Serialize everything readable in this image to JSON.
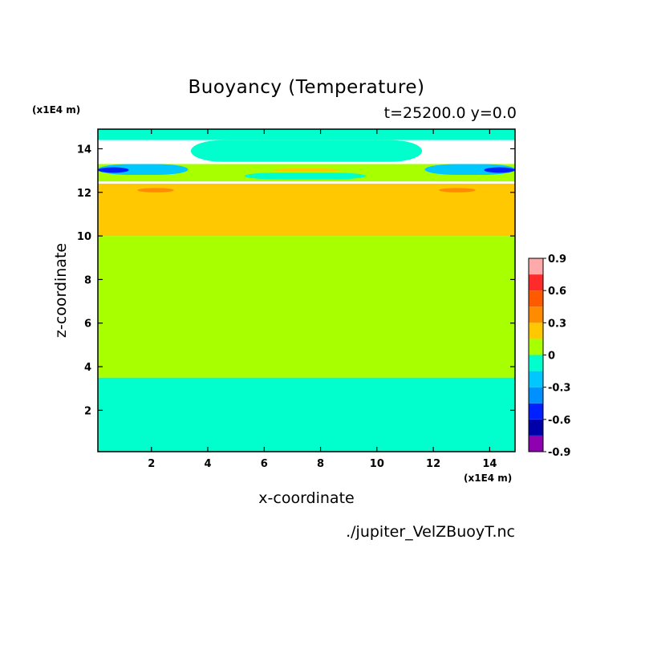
{
  "chart_data": {
    "type": "heatmap",
    "subtype": "filled-contour",
    "title": "Buoyancy (Temperature)",
    "subtitle": "t=25200.0 y=0.0",
    "xlabel": "x-coordinate",
    "ylabel": "z-coordinate",
    "x_unit_label": "(x1E4 m)",
    "y_unit_label": "(x1E4 m)",
    "xlim": [
      0.1,
      14.9
    ],
    "ylim": [
      0.1,
      14.9
    ],
    "x_ticks": [
      "2",
      "4",
      "6",
      "8",
      "10",
      "12",
      "14"
    ],
    "y_ticks": [
      "2",
      "4",
      "6",
      "8",
      "10",
      "12",
      "14"
    ],
    "colorbar": {
      "levels": [
        -0.9,
        -0.75,
        -0.6,
        -0.45,
        -0.3,
        -0.15,
        0,
        0.15,
        0.3,
        0.45,
        0.6,
        0.75,
        0.9
      ],
      "tick_labels": [
        "0.9",
        "0.6",
        "0.3",
        "0",
        "-0.3",
        "-0.6",
        "-0.9"
      ],
      "colors": [
        "#8e00b0",
        "#0000aa",
        "#0020ff",
        "#0090ff",
        "#00c8ff",
        "#00ffcc",
        "#a8ff00",
        "#ffc800",
        "#ff8c00",
        "#ff5a00",
        "#ff2a2a",
        "#ffaaaa"
      ]
    },
    "regions": [
      {
        "z_range": [
          0.1,
          3.5
        ],
        "x_range": [
          0.1,
          14.9
        ],
        "band": "-0.15 to 0",
        "color": "#00ffcc"
      },
      {
        "z_range": [
          3.5,
          10.0
        ],
        "x_range": [
          0.1,
          14.9
        ],
        "band": "0 to 0.15",
        "color": "#a8ff00"
      },
      {
        "z_range": [
          10.0,
          12.4
        ],
        "x_range": [
          0.1,
          14.9
        ],
        "band": "0.15 to 0.3",
        "color": "#ffc800"
      },
      {
        "z_range": [
          12.0,
          12.2
        ],
        "x_range": [
          1.5,
          2.8
        ],
        "band": "0.3 to 0.45",
        "color": "#ff8c00"
      },
      {
        "z_range": [
          12.0,
          12.2
        ],
        "x_range": [
          12.2,
          13.5
        ],
        "band": "0.3 to 0.45",
        "color": "#ff8c00"
      },
      {
        "z_range": [
          12.5,
          13.3
        ],
        "x_range": [
          0.1,
          14.9
        ],
        "band": "0 to 0.15",
        "color": "#a8ff00"
      },
      {
        "z_range": [
          12.8,
          13.3
        ],
        "x_range": [
          0.1,
          3.3
        ],
        "band": "-0.3 to -0.15",
        "color": "#00c8ff"
      },
      {
        "z_range": [
          12.8,
          13.3
        ],
        "x_range": [
          11.7,
          14.9
        ],
        "band": "-0.3 to -0.15",
        "color": "#00c8ff"
      },
      {
        "z_range": [
          12.9,
          13.15
        ],
        "x_range": [
          0.1,
          1.2
        ],
        "band": "-0.6 to -0.3",
        "color": "#0020ff"
      },
      {
        "z_range": [
          12.9,
          13.15
        ],
        "x_range": [
          13.8,
          14.9
        ],
        "band": "-0.6 to -0.3",
        "color": "#0020ff"
      },
      {
        "z_range": [
          12.6,
          12.9
        ],
        "x_range": [
          5.3,
          9.6
        ],
        "band": "-0.15 to 0",
        "color": "#00ffcc"
      },
      {
        "z_range": [
          12.95,
          13.1
        ],
        "x_range": [
          6.3,
          8.7
        ],
        "band": "0.15 to 0.3",
        "color": "#ffc800"
      },
      {
        "z_range": [
          13.4,
          14.4
        ],
        "x_range": [
          3.4,
          11.6
        ],
        "band": "-0.15 to 0",
        "color": "#00ffcc"
      },
      {
        "z_range": [
          14.4,
          14.9
        ],
        "x_range": [
          0.1,
          14.9
        ],
        "band": "-0.15 to 0",
        "color": "#00ffcc"
      }
    ],
    "grid": false,
    "legend": "colorbar-right"
  },
  "source_file": "./jupiter_VelZBuoyT.nc"
}
